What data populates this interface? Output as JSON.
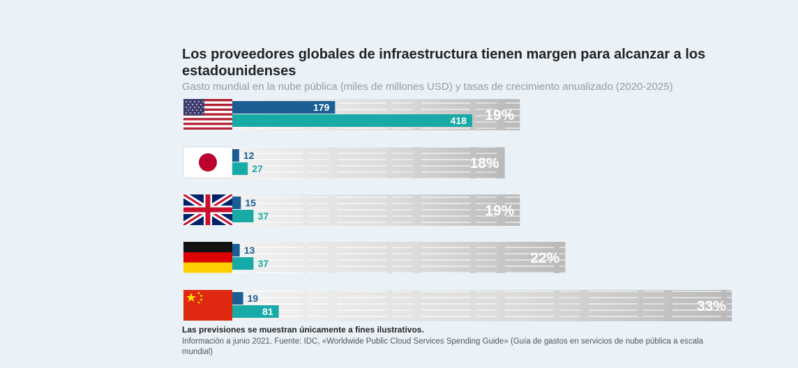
{
  "chart_data": {
    "type": "bar",
    "title": "Los proveedores globales de infraestructura tienen margen para alcanzar a los estadounidenses",
    "subtitle": "Gasto mundial en la nube pública (miles de millones USD) y tasas de crecimiento anualizado (2020-2025)",
    "categories": [
      "Estados Unidos",
      "Japón",
      "Reino Unido",
      "Alemania",
      "China"
    ],
    "series": [
      {
        "name": "2020",
        "color": "#1b5e96",
        "values": [
          179,
          12,
          15,
          13,
          19
        ]
      },
      {
        "name": "2025",
        "color": "#17aaa6",
        "values": [
          418,
          27,
          37,
          37,
          81
        ]
      }
    ],
    "growth_rates": [
      "19%",
      "18%",
      "19%",
      "22%",
      "33%"
    ],
    "growth_values": [
      19,
      18,
      19,
      22,
      33
    ],
    "xlim": [
      0,
      418
    ]
  },
  "footnote": "Las previsiones se muestran únicamente a fines ilustrativos.",
  "source": "Información a junio 2021. Fuente: IDC, «Worldwide Public Cloud Services Spending Guide» (Guía de gastos en servicios de nube pública a escala mundial)",
  "colors": {
    "background": "#eaf2f8",
    "bar_2020": "#1b5e96",
    "bar_2025": "#17aaa6",
    "growth_band": "#c9c9c9"
  }
}
